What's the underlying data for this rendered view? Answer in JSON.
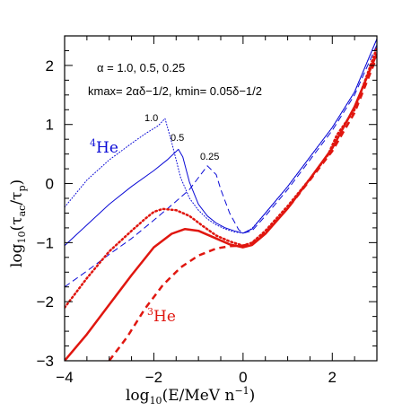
{
  "chart_data": {
    "type": "line",
    "title": "",
    "xlabel": "log10(E/MeV n^-1)",
    "ylabel": "log10(tau_ac/tau_p)",
    "xlim": [
      -4,
      3
    ],
    "ylim": [
      -3,
      2.5
    ],
    "xticks": [
      "−4",
      "−2",
      "0",
      "2"
    ],
    "xtick_values": [
      -4,
      -2,
      0,
      2
    ],
    "yticks": [
      "−3",
      "−2",
      "−1",
      "0",
      "1",
      "2"
    ],
    "ytick_values": [
      -3,
      -2,
      -1,
      0,
      1,
      2
    ],
    "grid": false,
    "annotations": {
      "alpha_line": "α = 1.0, 0.5, 0.25",
      "k_line": "kmax= 2αδ−1/2,  kmin= 0.05δ−1/2",
      "alpha_labels": [
        "1.0",
        "0.5",
        "0.25"
      ],
      "he4_label": "He",
      "he4_mass": "4",
      "he3_label": "He",
      "he3_mass": "3"
    },
    "colors": {
      "he4": "#0a0ad6",
      "he3": "#e0160f",
      "axis": "#000000"
    },
    "series": [
      {
        "species": "4He",
        "alpha": 1.0,
        "style": "dotted",
        "width": 1,
        "x": [
          -4,
          -3.5,
          -3,
          -2.5,
          -2.2,
          -1.9,
          -1.75,
          -1.6,
          -1.4,
          -1.2,
          -1.0,
          -0.8,
          -0.6,
          -0.4,
          -0.2,
          0,
          0.2,
          0.5,
          1.0,
          1.5,
          2.0,
          2.5,
          3.0
        ],
        "y": [
          -0.4,
          0.06,
          0.4,
          0.68,
          0.84,
          0.98,
          1.1,
          0.7,
          0.1,
          -0.25,
          -0.45,
          -0.6,
          -0.7,
          -0.77,
          -0.82,
          -0.84,
          -0.76,
          -0.5,
          -0.05,
          0.45,
          0.95,
          1.55,
          2.45
        ]
      },
      {
        "species": "4He",
        "alpha": 0.5,
        "style": "solid",
        "width": 1,
        "x": [
          -4,
          -3.5,
          -3,
          -2.5,
          -2.0,
          -1.7,
          -1.45,
          -1.35,
          -1.2,
          -1.0,
          -0.8,
          -0.6,
          -0.4,
          -0.2,
          0,
          0.2,
          0.5,
          1.0,
          1.5,
          2.0,
          2.5,
          3.0
        ],
        "y": [
          -1.05,
          -0.7,
          -0.35,
          -0.05,
          0.22,
          0.4,
          0.58,
          0.45,
          0.02,
          -0.35,
          -0.55,
          -0.67,
          -0.75,
          -0.8,
          -0.84,
          -0.77,
          -0.5,
          -0.05,
          0.45,
          0.95,
          1.55,
          2.45
        ]
      },
      {
        "species": "4He",
        "alpha": 0.25,
        "style": "dashed",
        "width": 1,
        "x": [
          -4,
          -3.5,
          -3,
          -2.5,
          -2.0,
          -1.5,
          -1.2,
          -1.0,
          -0.8,
          -0.6,
          -0.5,
          -0.3,
          -0.1,
          0,
          0.2,
          0.5,
          1.0,
          1.5,
          2.0,
          2.5,
          3.0
        ],
        "y": [
          -1.75,
          -1.48,
          -1.2,
          -0.93,
          -0.62,
          -0.3,
          -0.1,
          0.1,
          0.3,
          0.15,
          -0.1,
          -0.5,
          -0.78,
          -0.84,
          -0.8,
          -0.55,
          -0.1,
          0.4,
          0.9,
          1.5,
          2.35
        ]
      },
      {
        "species": "3He",
        "alpha": 1.0,
        "style": "dotted",
        "width": 2.5,
        "x": [
          -4,
          -3.5,
          -3,
          -2.5,
          -2.2,
          -2.0,
          -1.8,
          -1.5,
          -1.2,
          -0.9,
          -0.6,
          -0.3,
          0,
          0.2,
          0.5,
          1.0,
          1.5,
          1.9,
          2.1,
          2.5,
          3.0
        ],
        "y": [
          -2.1,
          -1.6,
          -1.15,
          -0.8,
          -0.6,
          -0.48,
          -0.43,
          -0.45,
          -0.55,
          -0.72,
          -0.88,
          -0.98,
          -1.05,
          -1.0,
          -0.8,
          -0.38,
          0.08,
          0.48,
          0.82,
          1.25,
          2.3
        ]
      },
      {
        "species": "3He",
        "alpha": 0.5,
        "style": "solid",
        "width": 2.5,
        "x": [
          -4,
          -3.5,
          -3,
          -2.5,
          -2.0,
          -1.6,
          -1.3,
          -1.0,
          -0.6,
          -0.3,
          0,
          0.2,
          0.5,
          1.0,
          1.5,
          2.0,
          2.5,
          3.0
        ],
        "y": [
          -3.0,
          -2.55,
          -2.05,
          -1.55,
          -1.08,
          -0.85,
          -0.77,
          -0.8,
          -0.93,
          -1.03,
          -1.08,
          -1.04,
          -0.85,
          -0.42,
          0.08,
          0.6,
          1.3,
          2.2
        ]
      },
      {
        "species": "3He",
        "alpha": 0.25,
        "style": "dashed",
        "width": 2.5,
        "x": [
          -3.0,
          -2.6,
          -2.2,
          -1.8,
          -1.4,
          -1.0,
          -0.6,
          -0.3,
          0,
          0.2,
          0.5,
          1.0,
          1.5,
          2.0,
          2.5,
          3.0
        ],
        "y": [
          -3.0,
          -2.6,
          -2.12,
          -1.72,
          -1.42,
          -1.22,
          -1.1,
          -1.06,
          -1.05,
          -1.01,
          -0.83,
          -0.42,
          0.06,
          0.55,
          1.2,
          2.15
        ]
      }
    ]
  }
}
